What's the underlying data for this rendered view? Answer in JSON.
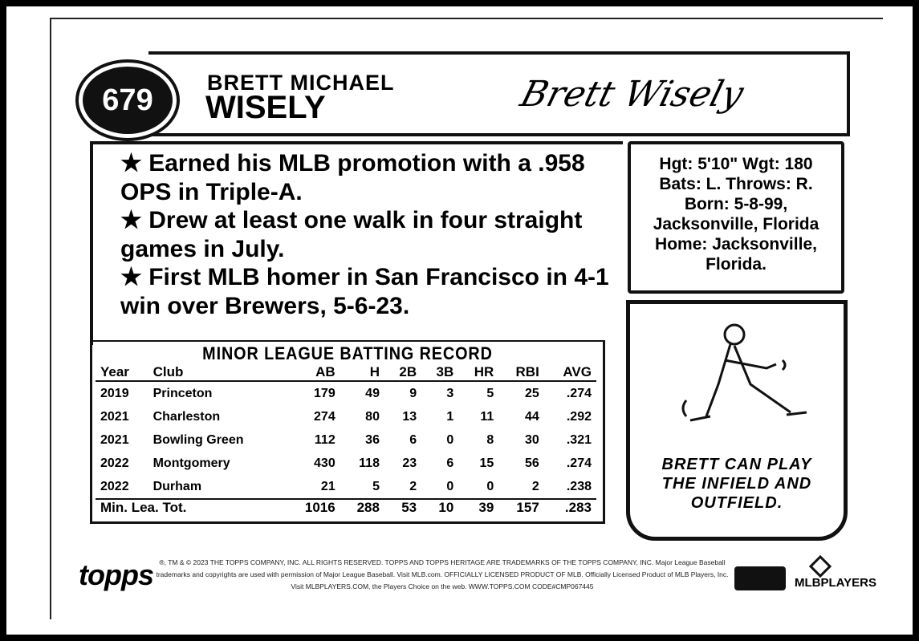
{
  "card": {
    "number": "679",
    "first_names": "BRETT MICHAEL",
    "last_name": "WISELY",
    "signature": "Brett Wisely",
    "bio": [
      "★ Earned his MLB promotion with a .958 OPS in Triple-A.",
      "★ Drew at least one walk in four straight games in July.",
      "★ First MLB homer in San Francisco in 4-1 win over Brewers, 5-6-23."
    ],
    "vitals": [
      "Hgt: 5'10\"  Wgt: 180",
      "Bats: L.   Throws: R.",
      "Born: 5-8-99,",
      "Jacksonville, Florida",
      "Home: Jacksonville,",
      "Florida."
    ],
    "cartoon_caption": [
      "BRETT CAN PLAY",
      "THE INFIELD AND",
      "OUTFIELD."
    ]
  },
  "stats": {
    "title": "MINOR LEAGUE BATTING RECORD",
    "columns": [
      "Year",
      "Club",
      "AB",
      "H",
      "2B",
      "3B",
      "HR",
      "RBI",
      "AVG"
    ],
    "rows": [
      [
        "2019",
        "Princeton",
        "179",
        "49",
        "9",
        "3",
        "5",
        "25",
        ".274"
      ],
      [
        "2021",
        "Charleston",
        "274",
        "80",
        "13",
        "1",
        "11",
        "44",
        ".292"
      ],
      [
        "2021",
        "Bowling Green",
        "112",
        "36",
        "6",
        "0",
        "8",
        "30",
        ".321"
      ],
      [
        "2022",
        "Montgomery",
        "430",
        "118",
        "23",
        "6",
        "15",
        "56",
        ".274"
      ],
      [
        "2022",
        "Durham",
        "21",
        "5",
        "2",
        "0",
        "0",
        "2",
        ".238"
      ]
    ],
    "total": [
      "Min. Lea. Tot.",
      "1016",
      "288",
      "53",
      "10",
      "39",
      "157",
      ".283"
    ]
  },
  "footer": {
    "brand": "topps",
    "legal": "®, TM & © 2023 THE TOPPS COMPANY, INC. ALL RIGHTS RESERVED. TOPPS AND TOPPS HERITAGE ARE TRADEMARKS OF THE TOPPS COMPANY, INC. Major League Baseball trademarks and copyrights are used with permission of Major League Baseball. Visit MLB.com. OFFICIALLY LICENSED PRODUCT OF MLB. Officially Licensed Product of MLB Players, Inc. Visit MLBPLAYERS.COM, the Players Choice on the web. WWW.TOPPS.COM CODE#CMP067445",
    "mlbpa": "MLBPLAYERS"
  }
}
